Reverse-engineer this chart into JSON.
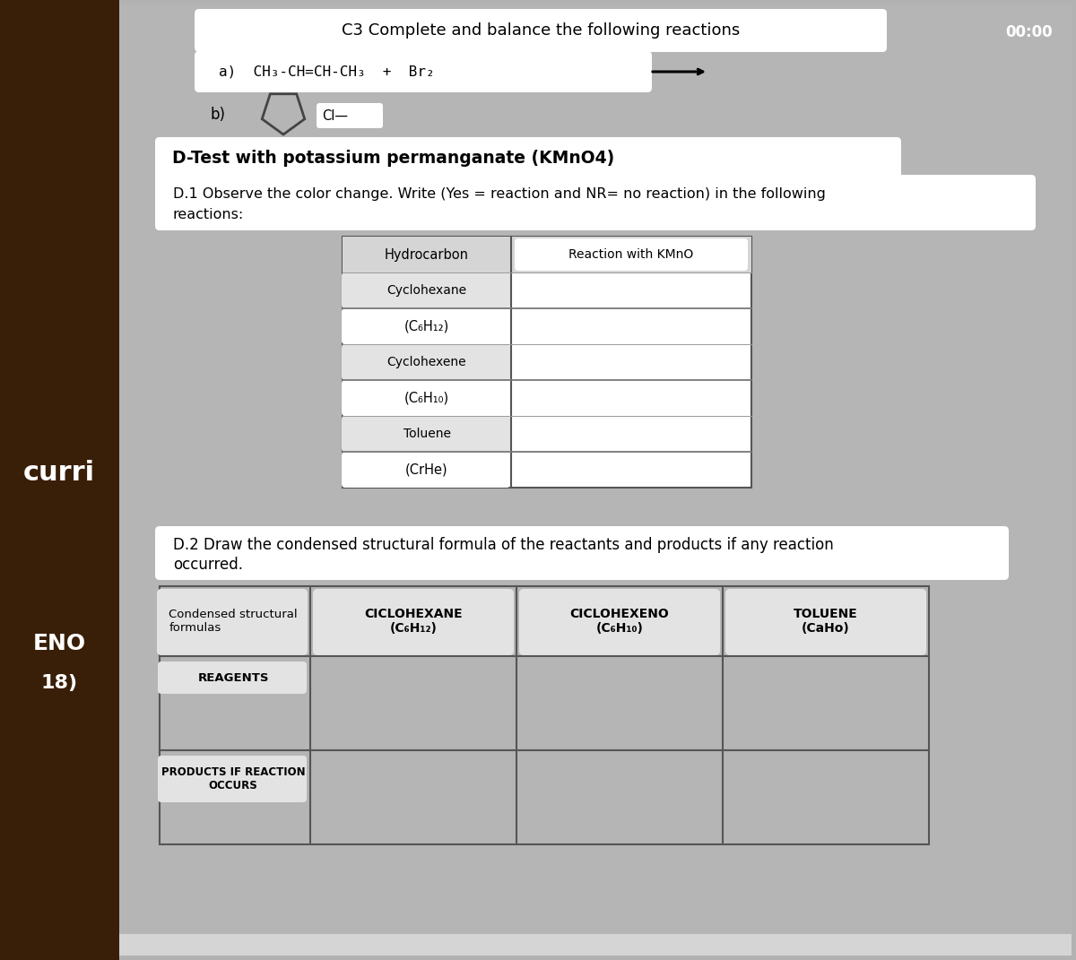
{
  "bg_dark_left": "#3a1f08",
  "bg_main": "#b2b2b2",
  "bg_content": "#b5b5b5",
  "white": "#ffffff",
  "light_gray": "#d5d5d5",
  "badge_gray": "#e3e3e3",
  "dark_gray": "#555555",
  "mid_gray": "#aaaaaa",
  "curri_text": "curri",
  "eno_text": "ENO",
  "num_text": "18)",
  "title_c3": "C3 Complete and balance the following reactions",
  "reaction_a_text": "a)  CH₃-CH=CH-CH₃  +  Br₂",
  "reaction_b_label": "b)",
  "cl_label": "Cl—",
  "d_test_title": "D-Test with potassium permanganate (KMnO4)",
  "d1_line1": "D.1 Observe the color change. Write (Yes = reaction and NR= no reaction) in the following",
  "d1_line2": "reactions:",
  "t1_col1_hdr": "Hydrocarbon",
  "t1_col2_hdr": "Reaction with KMnO",
  "t1_rows": [
    "Cyclohexane",
    "(C₆H₁₂)",
    "Cyclohexene",
    "(C₆H₁₀)",
    "Toluene",
    "(CrHe)"
  ],
  "d2_line1": "D.2 Draw the condensed structural formula of the reactants and products if any reaction",
  "d2_line2": "occurred.",
  "t2_col0": "Condensed structural\nformulas",
  "t2_headers": [
    "CICLOHEXANE\n(C₆H₁₂)",
    "CICLOHEXENO\n(C₆H₁₀)",
    "TOLUENE\n(CaHo)"
  ],
  "t2_row1": "REAGENTS",
  "t2_row2": "PRODUCTS IF REACTION\nOCCURS",
  "clock": "00:00"
}
